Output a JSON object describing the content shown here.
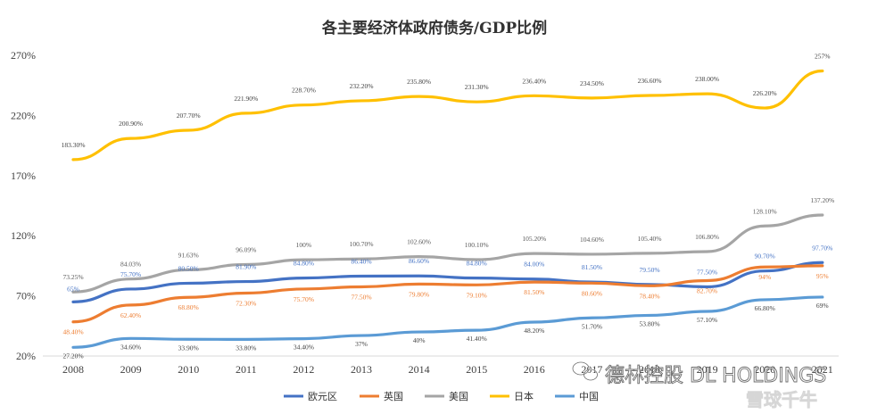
{
  "chart_data": {
    "type": "line",
    "title": "各主要经济体政府债务/GDP比例",
    "x": [
      "2008",
      "2009",
      "2010",
      "2011",
      "2012",
      "2013",
      "2014",
      "2015",
      "2016",
      "2017",
      "2018",
      "2019",
      "2020",
      "2021"
    ],
    "y_ticks": [
      "20%",
      "70%",
      "120%",
      "170%",
      "220%",
      "270%"
    ],
    "ylim": [
      20,
      270
    ],
    "xlabel": "",
    "ylabel": "",
    "grid": false,
    "legend_position": "bottom",
    "series": [
      {
        "name": "欧元区",
        "color": "#4472C4",
        "values": [
          65,
          75.7,
          80.5,
          81.9,
          84.8,
          86.4,
          86.6,
          84.8,
          84.0,
          81.5,
          79.5,
          77.5,
          90.7,
          97.7
        ],
        "labels": [
          "65%",
          "75.70%",
          "80.50%",
          "81.90%",
          "84.80%",
          "86.40%",
          "86.60%",
          "84.80%",
          "84.00%",
          "81.50%",
          "79.50%",
          "77.50%",
          "90.70%",
          "97.70%"
        ]
      },
      {
        "name": "英国",
        "color": "#ED7D31",
        "values": [
          48.4,
          62.4,
          68.8,
          72.3,
          75.7,
          77.5,
          79.8,
          79.1,
          81.5,
          80.6,
          78.4,
          82.7,
          94,
          95
        ],
        "labels": [
          "48.40%",
          "62.40%",
          "68.80%",
          "72.30%",
          "75.70%",
          "77.50%",
          "79.80%",
          "79.10%",
          "81.50%",
          "80.60%",
          "78.40%",
          "82.70%",
          "94%",
          "95%"
        ]
      },
      {
        "name": "美国",
        "color": "#A5A5A5",
        "values": [
          73.25,
          84.03,
          91.63,
          96.09,
          100,
          100.7,
          102.6,
          100.1,
          105.2,
          104.6,
          105.4,
          106.8,
          128.1,
          137.2
        ],
        "labels": [
          "73.25%",
          "84.03%",
          "91.63%",
          "96.09%",
          "100%",
          "100.70%",
          "102.60%",
          "100.10%",
          "105.20%",
          "104.60%",
          "105.40%",
          "106.80%",
          "128.10%",
          "137.20%"
        ]
      },
      {
        "name": "日本",
        "color": "#FFC000",
        "values": [
          183.3,
          200.9,
          207.7,
          221.9,
          228.7,
          232.2,
          235.8,
          231.3,
          236.4,
          234.5,
          236.6,
          238.0,
          226.2,
          257
        ],
        "labels": [
          "183.30%",
          "200.90%",
          "207.70%",
          "221.90%",
          "228.70%",
          "232.20%",
          "235.80%",
          "231.30%",
          "236.40%",
          "234.50%",
          "236.60%",
          "238.00%",
          "226.20%",
          "257%"
        ]
      },
      {
        "name": "中国",
        "color": "#5B9BD5",
        "values": [
          27.2,
          34.6,
          33.9,
          33.8,
          34.4,
          37,
          40,
          41.4,
          48.2,
          51.7,
          53.8,
          57.1,
          66.8,
          69
        ],
        "labels": [
          "27.20%",
          "34.60%",
          "33.90%",
          "33.80%",
          "34.40%",
          "37%",
          "40%",
          "41.40%",
          "48.20%",
          "51.70%",
          "53.80%",
          "57.10%",
          "66.80%",
          "69%"
        ]
      }
    ]
  },
  "watermark": {
    "logo_text": "德林控股 DL HOLDINGS",
    "sub_text": "雪球千牛"
  }
}
